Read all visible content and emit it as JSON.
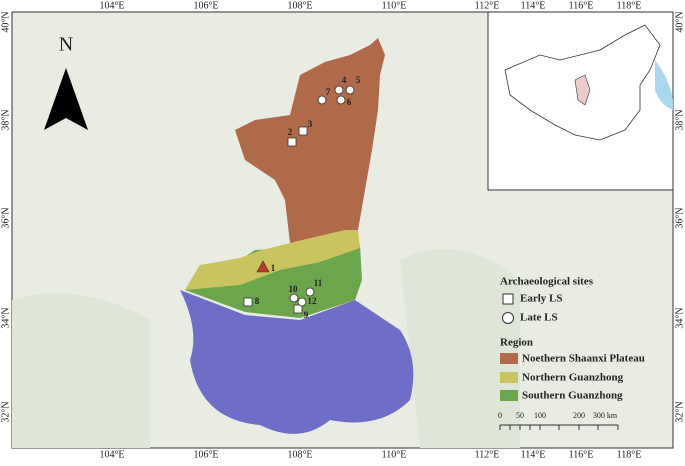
{
  "graticule": {
    "top": [
      "104°E",
      "106°E",
      "108°E",
      "110°E",
      "112°E",
      "114°E",
      "116°E",
      "118°E"
    ],
    "bottom": [
      "104°E",
      "106°E",
      "108°E",
      "110°E",
      "112°E",
      "114°E",
      "116°E",
      "118°E"
    ],
    "left": [
      "40°N",
      "38°N",
      "36°N",
      "34°N",
      "32°N"
    ],
    "right": [
      "40°N",
      "38°N",
      "36°N",
      "34°N",
      "32°N"
    ]
  },
  "north": "N",
  "sites": [
    "1",
    "2",
    "3",
    "4",
    "5",
    "6",
    "7",
    "8",
    "9",
    "10",
    "11",
    "12"
  ],
  "legend": {
    "sites_title": "Archaeological sites",
    "sites": [
      "Early LS",
      "Late LS"
    ],
    "region_title": "Region",
    "regions": [
      "Noethern Shaanxi Plateau",
      "Northern Guanzhong",
      "Southern Guanzhong"
    ]
  },
  "scale": [
    "0",
    "50",
    "100",
    "200",
    "300 km"
  ]
}
